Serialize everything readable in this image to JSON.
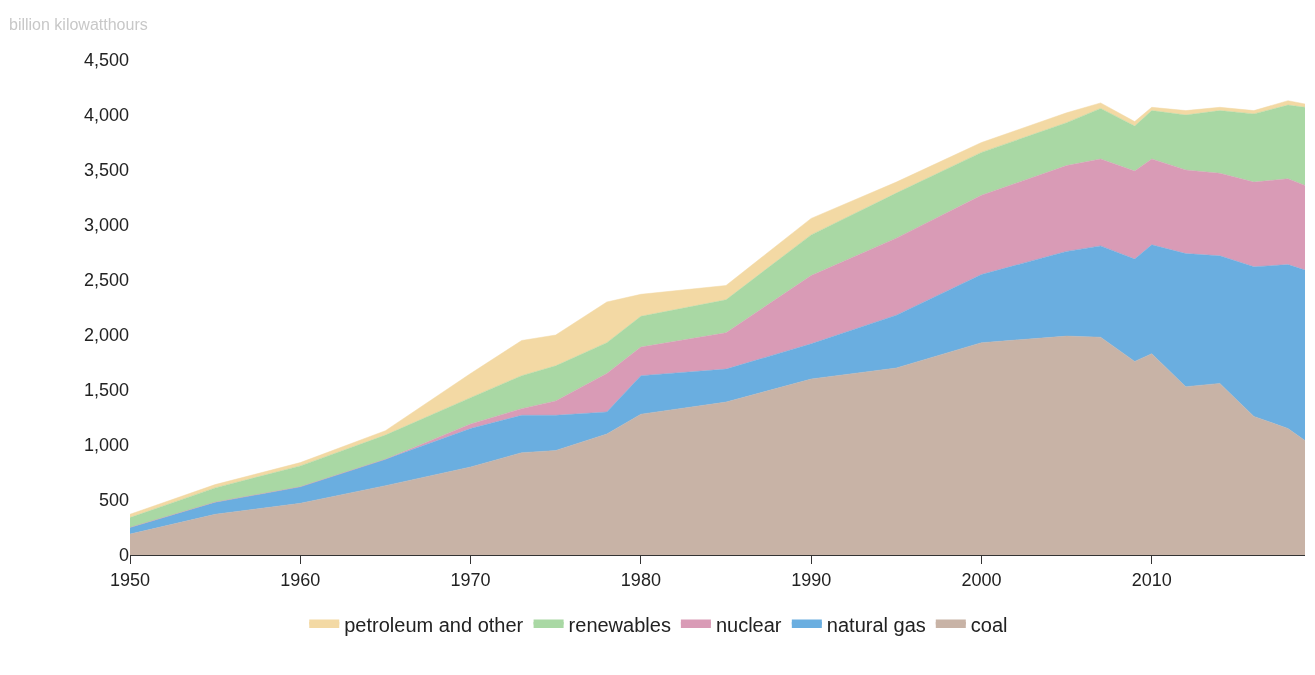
{
  "chart_data": {
    "type": "area",
    "stacked": true,
    "ylabel": "billion kilowatthours",
    "x": [
      1950,
      1955,
      1960,
      1965,
      1970,
      1973,
      1975,
      1978,
      1980,
      1985,
      1990,
      1995,
      2000,
      2005,
      2007,
      2009,
      2010,
      2012,
      2014,
      2016,
      2018,
      2019
    ],
    "series": [
      {
        "name": "coal",
        "color": "#c8b3a6",
        "values": [
          190,
          370,
          470,
          630,
          800,
          930,
          950,
          1100,
          1280,
          1390,
          1600,
          1700,
          1930,
          1990,
          1980,
          1760,
          1830,
          1530,
          1560,
          1260,
          1150,
          1040
        ]
      },
      {
        "name": "natural gas",
        "color": "#6aaee0",
        "values": [
          60,
          110,
          150,
          240,
          350,
          340,
          320,
          200,
          350,
          300,
          320,
          480,
          620,
          770,
          830,
          930,
          990,
          1210,
          1160,
          1360,
          1490,
          1550
        ]
      },
      {
        "name": "nuclear",
        "color": "#d99bb6",
        "values": [
          0,
          0,
          0,
          0,
          40,
          60,
          130,
          350,
          260,
          330,
          620,
          700,
          720,
          780,
          790,
          800,
          780,
          760,
          750,
          770,
          780,
          770
        ]
      },
      {
        "name": "renewables",
        "color": "#a9d8a4",
        "values": [
          90,
          130,
          190,
          220,
          240,
          300,
          320,
          280,
          280,
          300,
          370,
          410,
          390,
          390,
          460,
          410,
          440,
          500,
          570,
          620,
          670,
          710
        ]
      },
      {
        "name": "petroleum and other",
        "color": "#f3d9a4",
        "values": [
          30,
          30,
          30,
          40,
          220,
          320,
          280,
          370,
          200,
          130,
          150,
          100,
          90,
          90,
          50,
          40,
          30,
          40,
          30,
          30,
          40,
          30
        ]
      }
    ],
    "xlim": [
      1950,
      2019
    ],
    "xticks": [
      1950,
      1960,
      1970,
      1980,
      1990,
      2000,
      2010
    ],
    "ylim": [
      0,
      4500
    ],
    "yticks": [
      {
        "value": 0,
        "label": "0"
      },
      {
        "value": 500,
        "label": "500"
      },
      {
        "value": 1000,
        "label": "1,000"
      },
      {
        "value": 1500,
        "label": "1,500"
      },
      {
        "value": 2000,
        "label": "2,000"
      },
      {
        "value": 2500,
        "label": "2,500"
      },
      {
        "value": 3000,
        "label": "3,000"
      },
      {
        "value": 3500,
        "label": "3,500"
      },
      {
        "value": 4000,
        "label": "4,000"
      },
      {
        "value": 4500,
        "label": "4,500"
      }
    ],
    "legend": "bottom"
  }
}
